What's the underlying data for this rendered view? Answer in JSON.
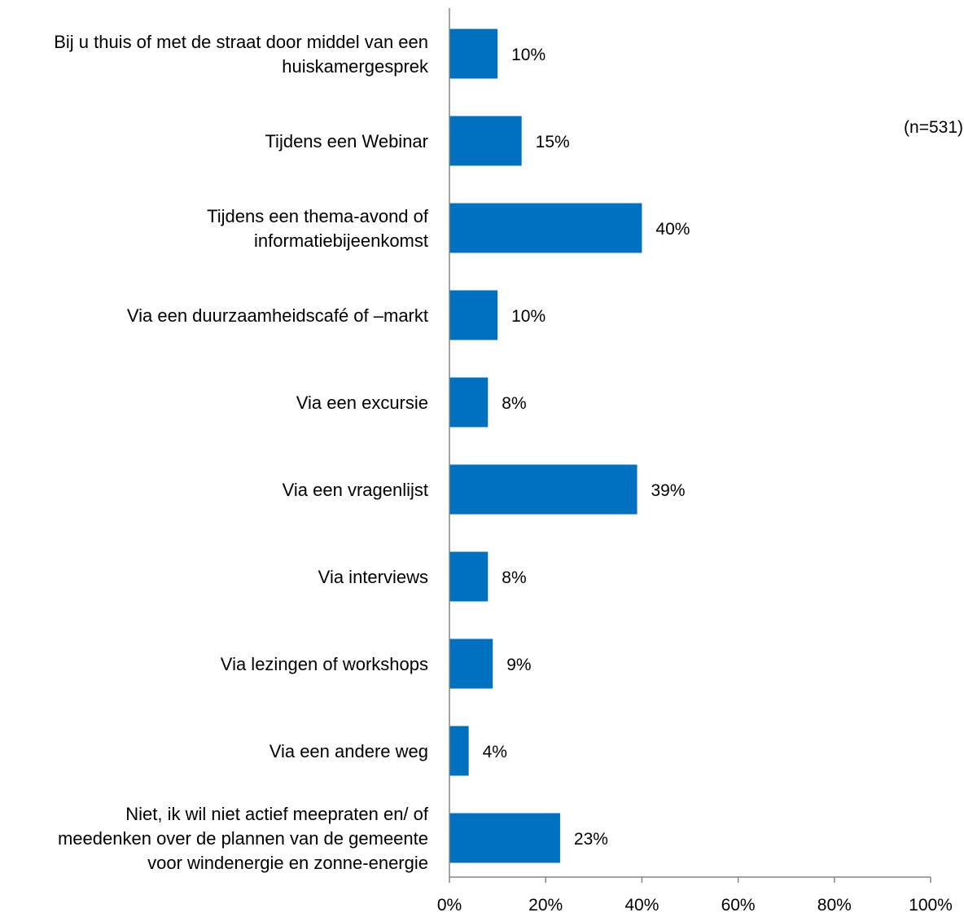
{
  "chart_data": {
    "type": "bar",
    "orientation": "horizontal",
    "categories": [
      [
        "Bij u thuis of met de straat door middel van een",
        "huiskamergesprek"
      ],
      [
        "Tijdens een Webinar"
      ],
      [
        "Tijdens een thema-avond of",
        "informatiebijeenkomst"
      ],
      [
        "Via een duurzaamheidscafé of –markt"
      ],
      [
        "Via een excursie"
      ],
      [
        "Via een vragenlijst"
      ],
      [
        "Via interviews"
      ],
      [
        "Via lezingen of workshops"
      ],
      [
        "Via een andere weg"
      ],
      [
        "Niet, ik wil niet actief meepraten en/ of",
        "meedenken over de plannen van de gemeente",
        "voor windenergie en zonne-energie"
      ]
    ],
    "values": [
      10,
      15,
      40,
      10,
      8,
      39,
      8,
      9,
      4,
      23
    ],
    "value_labels": [
      "10%",
      "15%",
      "40%",
      "10%",
      "8%",
      "39%",
      "8%",
      "9%",
      "4%",
      "23%"
    ],
    "xlim": [
      0,
      100
    ],
    "xticks": [
      "0%",
      "20%",
      "40%",
      "60%",
      "80%",
      "100%"
    ],
    "note": "(n=531)",
    "grid": false,
    "legend": "none",
    "bar_color": "#0070C0",
    "axis_color": "#868686"
  }
}
